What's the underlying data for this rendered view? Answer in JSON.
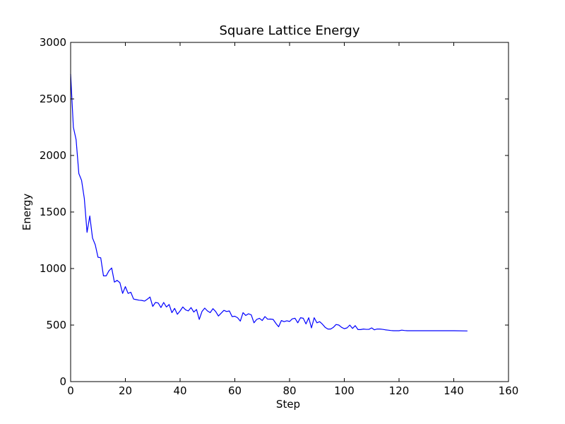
{
  "chart_data": {
    "type": "line",
    "title": "Square Lattice Energy",
    "xlabel": "Step",
    "ylabel": "Energy",
    "xlim": [
      0,
      160
    ],
    "ylim": [
      0,
      3000
    ],
    "xticks": [
      0,
      20,
      40,
      60,
      80,
      100,
      120,
      140,
      160
    ],
    "yticks": [
      0,
      500,
      1000,
      1500,
      2000,
      2500,
      3000
    ],
    "grid": false,
    "series": [
      {
        "color": "#0000ff",
        "x": [
          0,
          1,
          2,
          3,
          4,
          5,
          6,
          7,
          8,
          9,
          10,
          11,
          12,
          13,
          14,
          15,
          16,
          17,
          18,
          19,
          20,
          21,
          22,
          23,
          24,
          25,
          26,
          27,
          28,
          29,
          30,
          31,
          32,
          33,
          34,
          35,
          36,
          37,
          38,
          39,
          40,
          41,
          42,
          43,
          44,
          45,
          46,
          47,
          48,
          49,
          50,
          51,
          52,
          53,
          54,
          55,
          56,
          57,
          58,
          59,
          60,
          61,
          62,
          63,
          64,
          65,
          66,
          67,
          68,
          69,
          70,
          71,
          72,
          73,
          74,
          75,
          76,
          77,
          78,
          79,
          80,
          81,
          82,
          83,
          84,
          85,
          86,
          87,
          88,
          89,
          90,
          91,
          92,
          93,
          94,
          95,
          96,
          97,
          98,
          99,
          100,
          101,
          102,
          103,
          104,
          105,
          106,
          107,
          108,
          109,
          110,
          111,
          112,
          113,
          114,
          115,
          116,
          117,
          118,
          119,
          120,
          121,
          122,
          123,
          124,
          125,
          130,
          135,
          140,
          145
        ],
        "y": [
          2720,
          2250,
          2140,
          1840,
          1780,
          1620,
          1320,
          1465,
          1270,
          1210,
          1100,
          1095,
          935,
          935,
          980,
          1005,
          880,
          895,
          875,
          780,
          840,
          780,
          790,
          730,
          725,
          720,
          718,
          712,
          728,
          748,
          665,
          700,
          695,
          655,
          700,
          660,
          682,
          610,
          648,
          595,
          625,
          660,
          635,
          625,
          655,
          615,
          638,
          550,
          620,
          650,
          625,
          610,
          645,
          620,
          580,
          605,
          630,
          620,
          625,
          575,
          578,
          565,
          535,
          610,
          585,
          600,
          590,
          520,
          550,
          560,
          540,
          575,
          552,
          553,
          550,
          515,
          485,
          540,
          530,
          538,
          532,
          555,
          560,
          520,
          565,
          560,
          510,
          565,
          475,
          565,
          520,
          530,
          508,
          480,
          465,
          465,
          480,
          505,
          500,
          480,
          468,
          475,
          500,
          470,
          495,
          460,
          460,
          465,
          462,
          462,
          475,
          458,
          465,
          465,
          462,
          458,
          455,
          452,
          450,
          450,
          450,
          455,
          452,
          450,
          450,
          450,
          450,
          450,
          450,
          448
        ]
      }
    ]
  }
}
